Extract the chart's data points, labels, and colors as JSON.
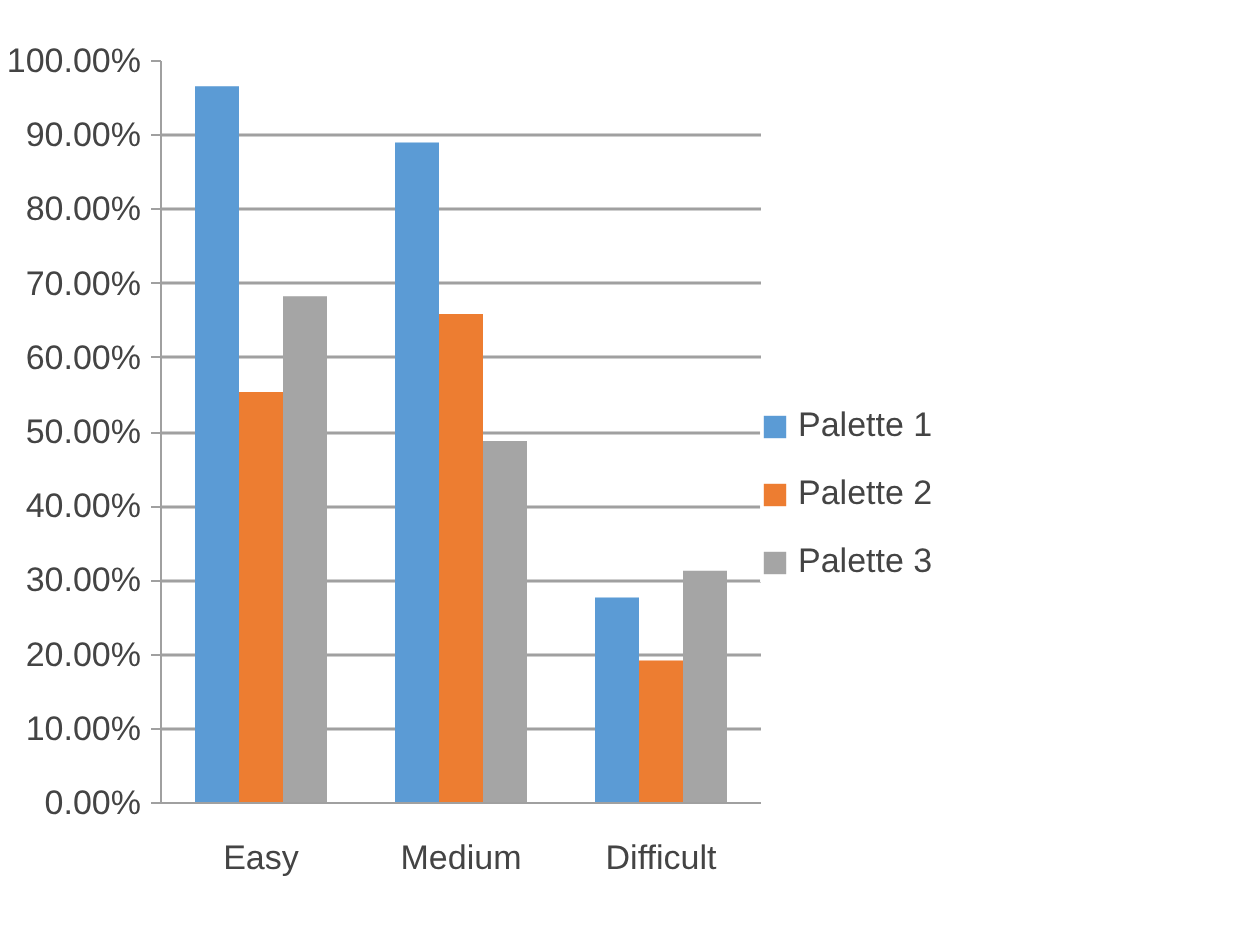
{
  "chart_data": {
    "type": "bar",
    "categories": [
      "Easy",
      "Medium",
      "Difficult"
    ],
    "series": [
      {
        "name": "Palette 1",
        "color": "#5b9bd5",
        "values": [
          96.6,
          89.0,
          27.7
        ]
      },
      {
        "name": "Palette 2",
        "color": "#ed7d31",
        "values": [
          55.4,
          65.9,
          19.2
        ]
      },
      {
        "name": "Palette 3",
        "color": "#a5a5a5",
        "values": [
          68.3,
          48.8,
          31.3
        ]
      }
    ],
    "ylim": [
      0,
      100
    ],
    "yticks": [
      {
        "value": 0,
        "label": "0.00%"
      },
      {
        "value": 10,
        "label": "10.00%"
      },
      {
        "value": 20,
        "label": "20.00%"
      },
      {
        "value": 30,
        "label": "30.00%"
      },
      {
        "value": 40,
        "label": "40.00%"
      },
      {
        "value": 50,
        "label": "50.00%"
      },
      {
        "value": 60,
        "label": "60.00%"
      },
      {
        "value": 70,
        "label": "70.00%"
      },
      {
        "value": 80,
        "label": "80.00%"
      },
      {
        "value": 90,
        "label": "90.00%"
      },
      {
        "value": 100,
        "label": "100.00%"
      }
    ],
    "grid": "y",
    "legend": "right"
  }
}
